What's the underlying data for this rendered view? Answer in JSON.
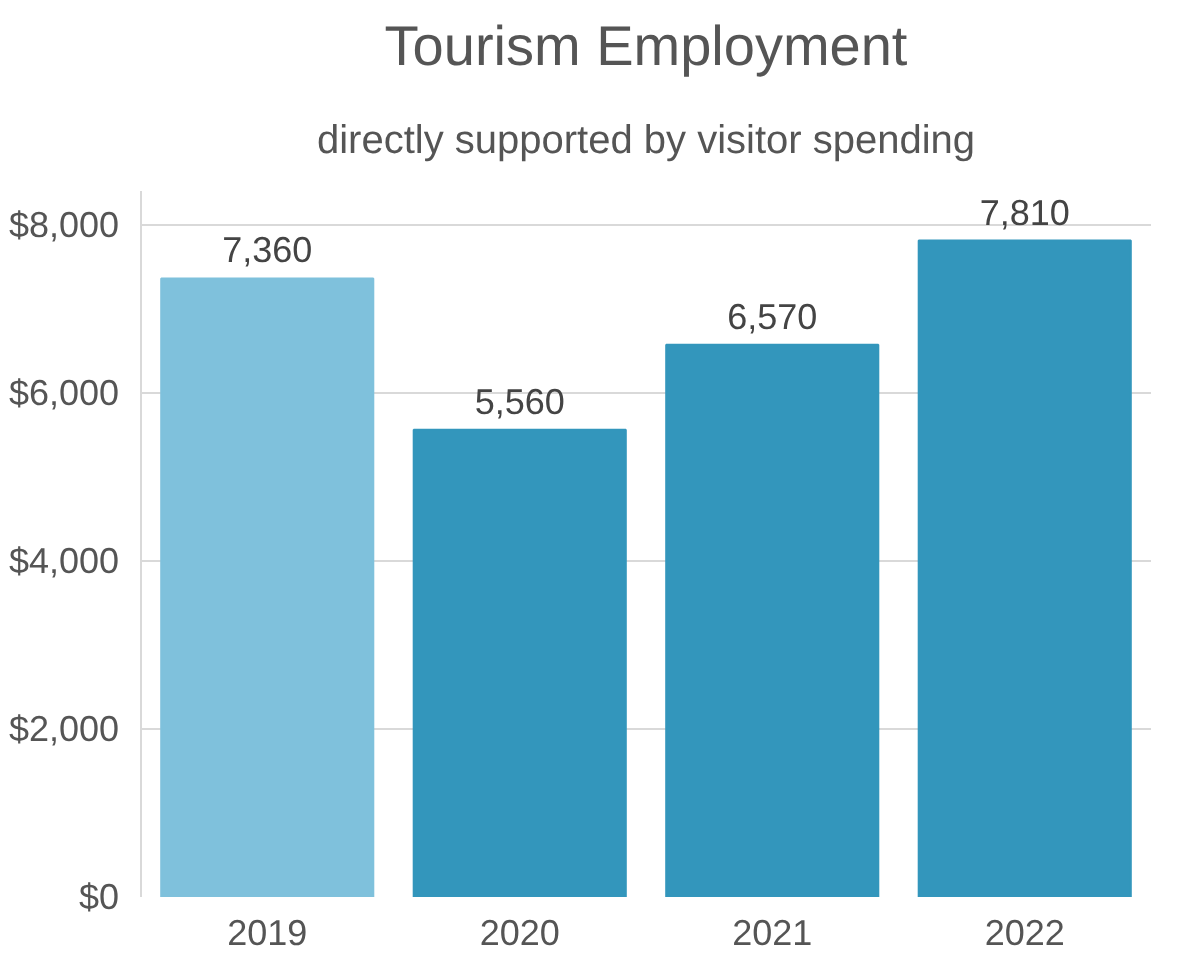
{
  "chart_data": {
    "type": "bar",
    "title": "Tourism Employment",
    "subtitle": "directly supported by visitor spending",
    "categories": [
      "2019",
      "2020",
      "2021",
      "2022"
    ],
    "values": [
      7360,
      5560,
      6570,
      7810
    ],
    "colors": [
      "#7fc1dc",
      "#3396bc",
      "#3396bc",
      "#3396bc"
    ],
    "ylim": [
      0,
      8400
    ],
    "yticks": [
      {
        "value": 0,
        "label": "$0"
      },
      {
        "value": 2000,
        "label": "$2,000"
      },
      {
        "value": 4000,
        "label": "$4,000"
      },
      {
        "value": 6000,
        "label": "$6,000"
      },
      {
        "value": 8000,
        "label": "$8,000"
      }
    ],
    "value_labels": [
      "7,360",
      "5,560",
      "6,570",
      "7,810"
    ],
    "grid": "y"
  }
}
